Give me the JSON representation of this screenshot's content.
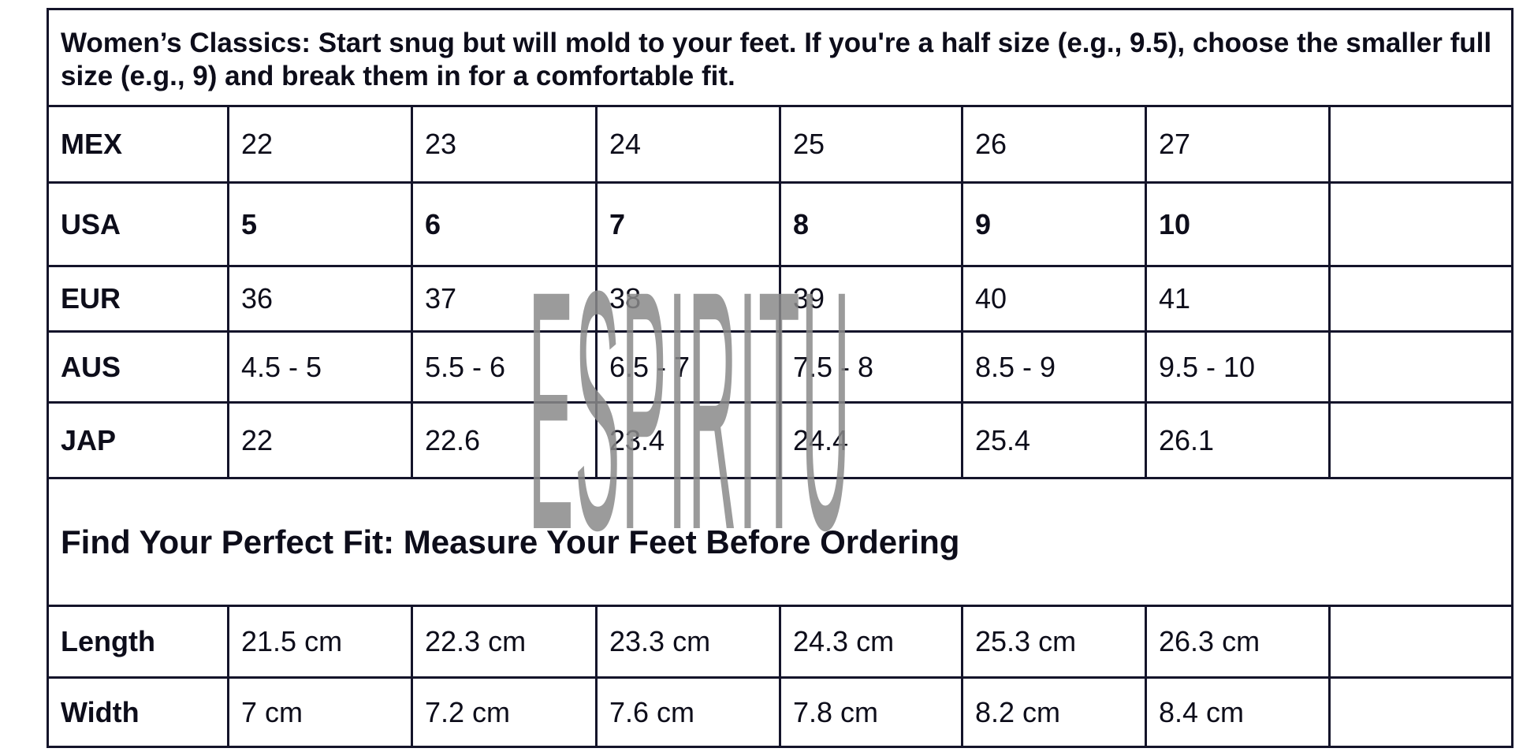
{
  "header": "Women’s Classics: Start snug but will mold to your feet. If you're a half size (e.g., 9.5), choose the smaller full size (e.g., 9) and break them in for a comfortable fit.",
  "size_rows": [
    {
      "label": "MEX",
      "values": [
        "22",
        "23",
        "24",
        "25",
        "26",
        "27",
        ""
      ]
    },
    {
      "label": "USA",
      "values": [
        "5",
        "6",
        "7",
        "8",
        "9",
        "10",
        ""
      ]
    },
    {
      "label": "EUR",
      "values": [
        "36",
        "37",
        "38",
        "39",
        "40",
        "41",
        ""
      ]
    },
    {
      "label": "AUS",
      "values": [
        "4.5 - 5",
        "5.5 - 6",
        "6.5 - 7",
        "7.5 - 8",
        "8.5 - 9",
        "9.5 - 10",
        ""
      ]
    },
    {
      "label": "JAP",
      "values": [
        "22",
        "22.6",
        "23.4",
        "24.4",
        "25.4",
        "26.1",
        ""
      ]
    }
  ],
  "fit_title": "Find Your Perfect Fit: Measure Your Feet Before Ordering",
  "measure_rows": [
    {
      "label": "Length",
      "values": [
        "21.5 cm",
        "22.3 cm",
        "23.3 cm",
        "24.3 cm",
        "25.3 cm",
        "26.3 cm",
        ""
      ]
    },
    {
      "label": "Width",
      "values": [
        "7 cm",
        "7.2 cm",
        "7.6 cm",
        "7.8 cm",
        "8.2 cm",
        "8.4 cm",
        ""
      ]
    }
  ],
  "watermark": {
    "text": "ESPIRITU",
    "color": "#8a8a8a"
  }
}
